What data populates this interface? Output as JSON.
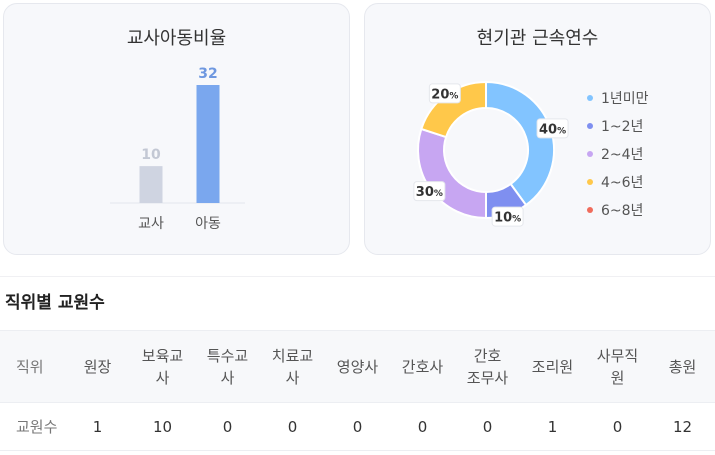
{
  "ratio_card": {
    "title": "교사아동비율",
    "chart_data": {
      "type": "bar",
      "categories": [
        "교사",
        "아동"
      ],
      "values": [
        10,
        32
      ],
      "value_labels": [
        "10",
        "32"
      ],
      "colors": [
        "#cfd4e1",
        "#7aa7ee"
      ],
      "label_colors": [
        "#c3c8d4",
        "#6f98e0"
      ]
    }
  },
  "tenure_card": {
    "title": "현기관 근속연수",
    "chart_data": {
      "type": "pie",
      "donut": true,
      "categories": [
        "1년미만",
        "1~2년",
        "2~4년",
        "4~6년",
        "6~8년"
      ],
      "values": [
        40,
        10,
        30,
        20,
        0
      ],
      "colors": [
        "#82c4ff",
        "#7f8ff0",
        "#c7a6f2",
        "#ffc84a",
        "#f06c5c"
      ],
      "value_labels": [
        "40",
        "10",
        "30",
        "20",
        ""
      ],
      "percent_sign": "%"
    }
  },
  "staff_section": {
    "title": "직위별 교원수",
    "headers": [
      [
        "직위"
      ],
      [
        "원장"
      ],
      [
        "보육교",
        "사"
      ],
      [
        "특수교",
        "사"
      ],
      [
        "치료교",
        "사"
      ],
      [
        "영양사"
      ],
      [
        "간호사"
      ],
      [
        "간호",
        "조무사"
      ],
      [
        "조리원"
      ],
      [
        "사무직",
        "원"
      ],
      [
        "총원"
      ]
    ],
    "row": [
      "교원수",
      "1",
      "10",
      "0",
      "0",
      "0",
      "0",
      "0",
      "1",
      "0",
      "12"
    ]
  }
}
